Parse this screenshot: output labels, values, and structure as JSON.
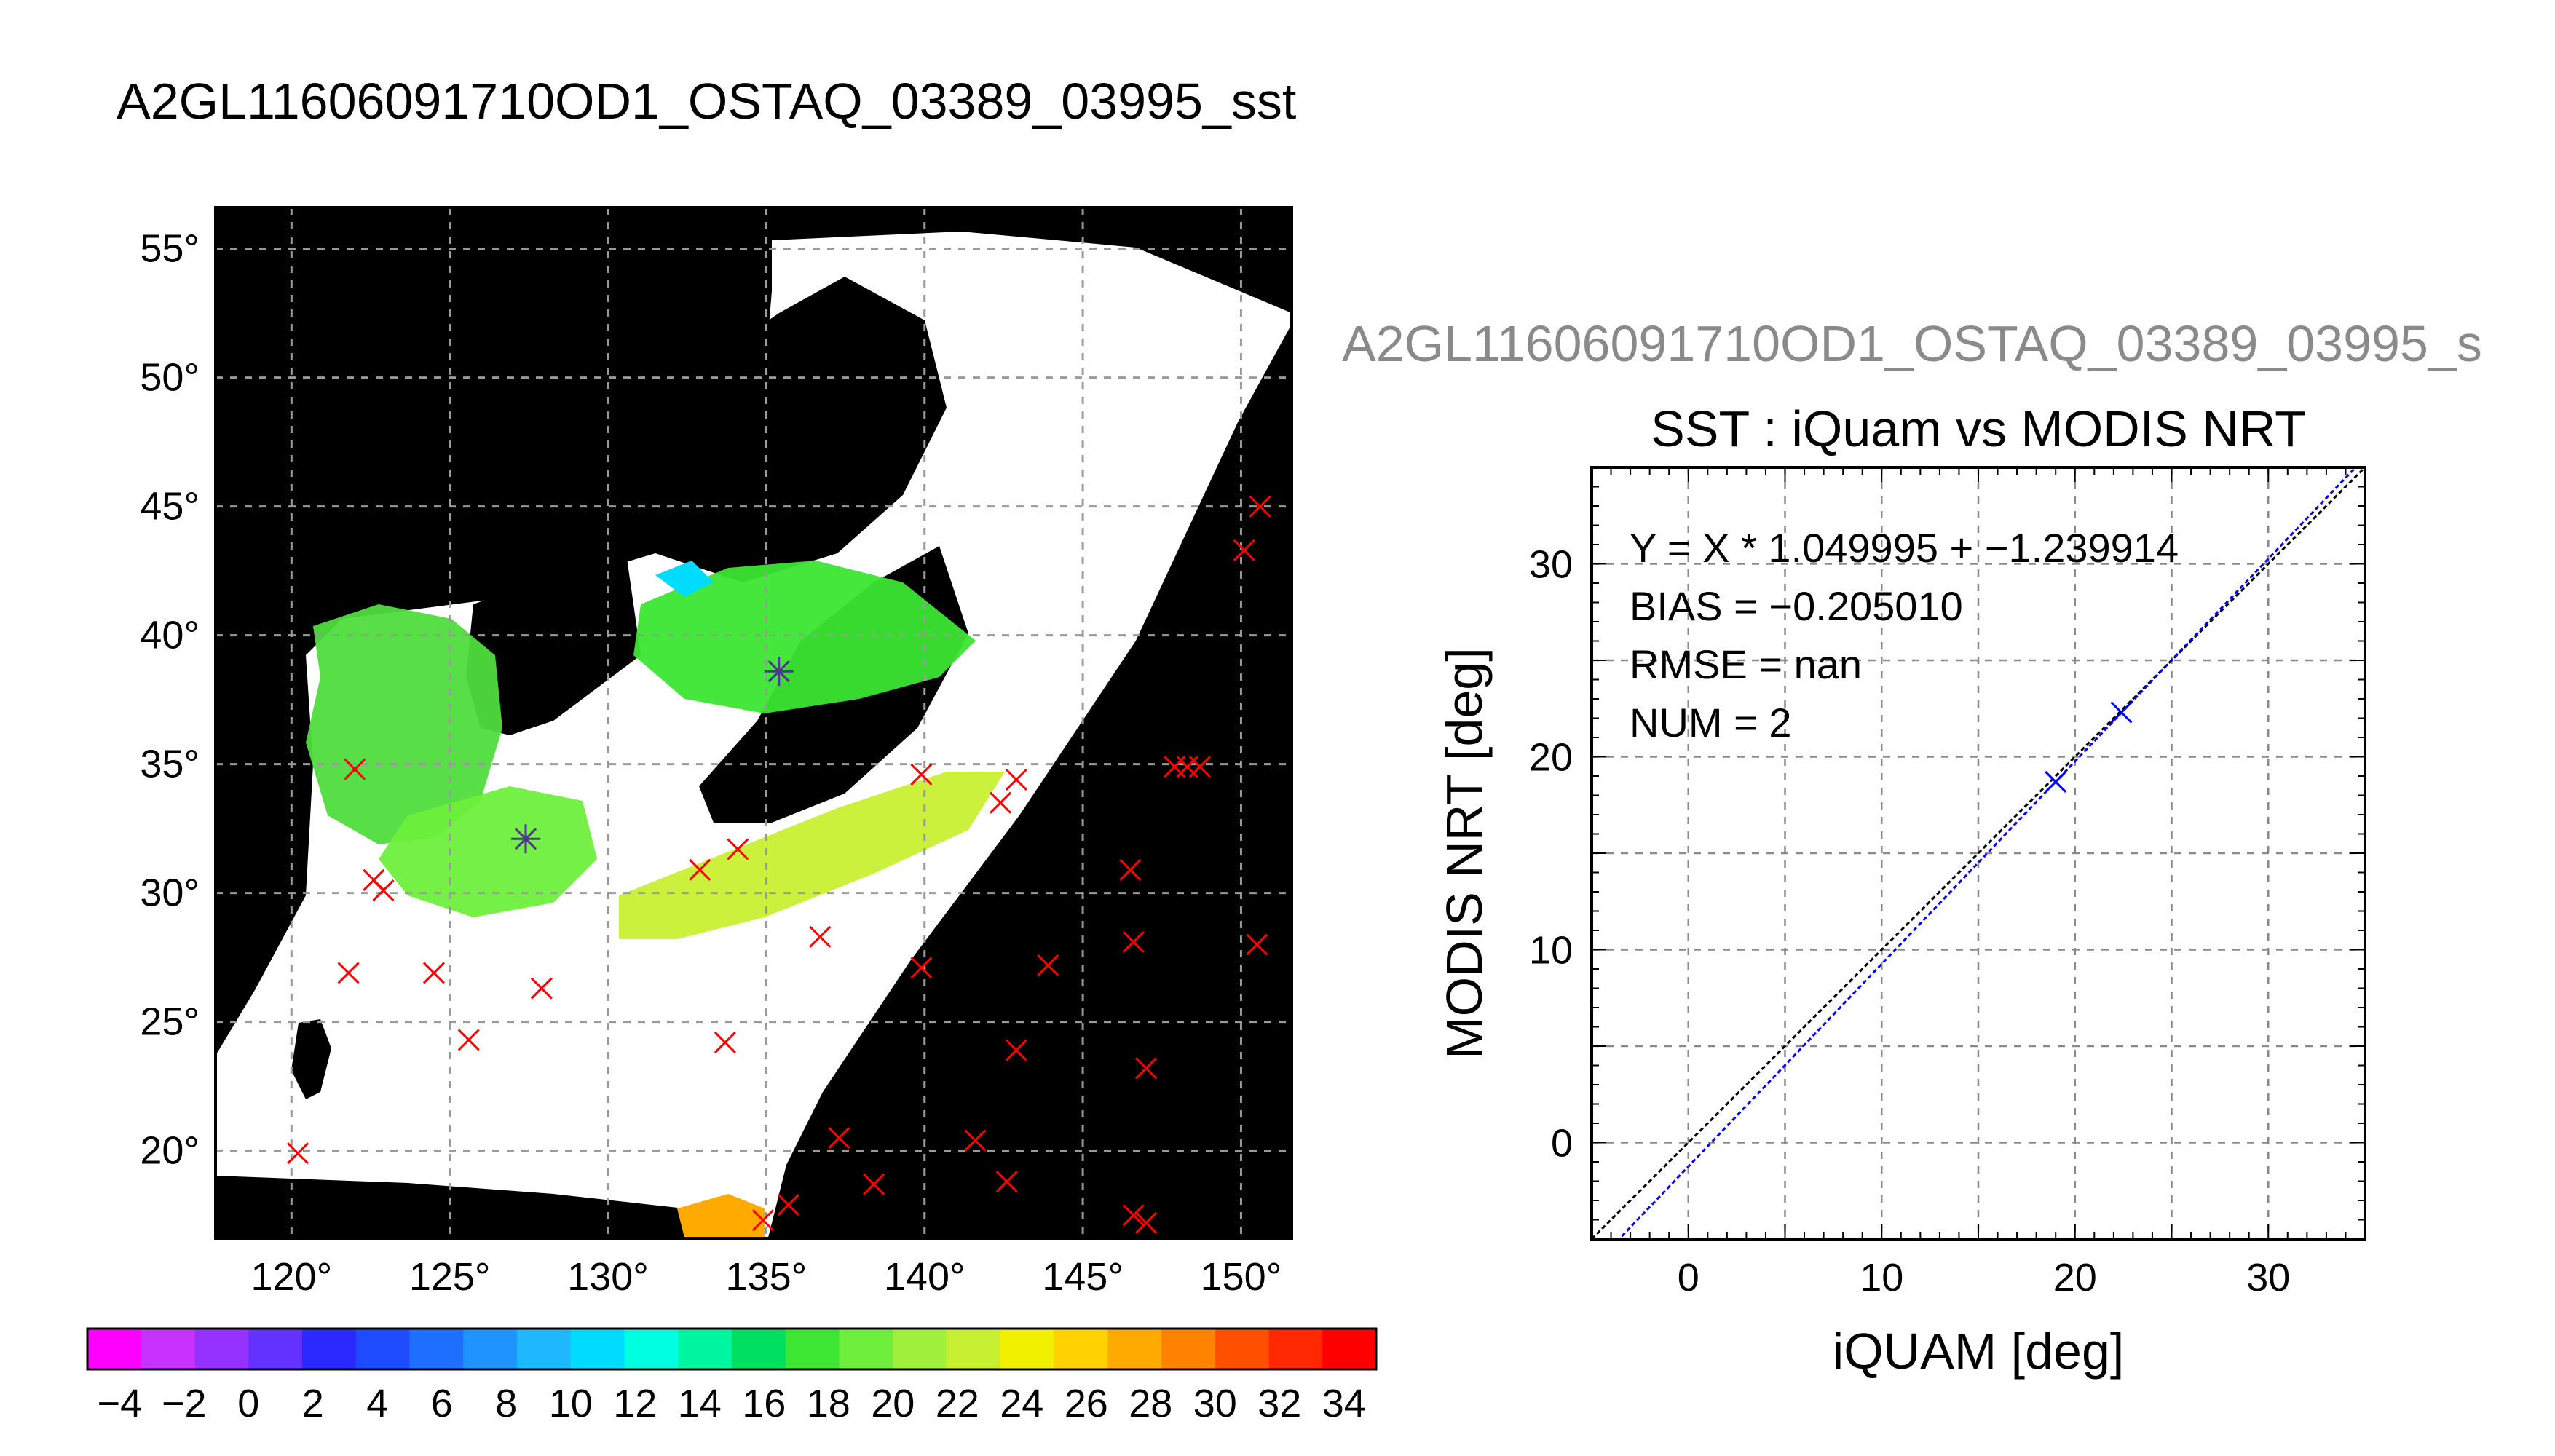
{
  "main_title": "A2GL11606091710OD1_OSTAQ_03389_03995_sst",
  "map": {
    "lon_ticks": [
      120,
      125,
      130,
      135,
      140,
      145,
      150
    ],
    "lat_ticks": [
      20,
      25,
      30,
      35,
      40,
      45,
      50,
      55
    ],
    "lon_range": [
      117.6,
      151.6
    ],
    "lat_range": [
      16.6,
      56.6
    ],
    "degree_symbol": "°",
    "colors": {
      "background": "#000000",
      "land_or_no_data": "#ffffff",
      "marker": "#ff0000",
      "highlight_marker": "#4b3b8f",
      "grid": "#9a9a9a"
    },
    "markers": [
      [
        120.2,
        19.9
      ],
      [
        121.8,
        26.9
      ],
      [
        122.0,
        34.8
      ],
      [
        122.6,
        30.5
      ],
      [
        122.9,
        30.1
      ],
      [
        124.5,
        26.9
      ],
      [
        125.6,
        24.3
      ],
      [
        127.4,
        32.1
      ],
      [
        127.9,
        26.3
      ],
      [
        132.9,
        30.9
      ],
      [
        133.7,
        24.2
      ],
      [
        134.1,
        31.7
      ],
      [
        135.4,
        38.6
      ],
      [
        134.9,
        17.3
      ],
      [
        135.7,
        17.9
      ],
      [
        136.7,
        28.3
      ],
      [
        137.3,
        20.5
      ],
      [
        138.4,
        18.7
      ],
      [
        139.9,
        34.6
      ],
      [
        139.9,
        27.1
      ],
      [
        141.6,
        20.4
      ],
      [
        142.4,
        33.5
      ],
      [
        142.6,
        18.8
      ],
      [
        142.9,
        34.4
      ],
      [
        142.9,
        23.9
      ],
      [
        143.9,
        27.2
      ],
      [
        146.5,
        30.9
      ],
      [
        146.6,
        28.1
      ],
      [
        146.6,
        17.5
      ],
      [
        147.0,
        17.2
      ],
      [
        147.0,
        23.2
      ],
      [
        147.9,
        34.9
      ],
      [
        148.3,
        34.9
      ],
      [
        148.7,
        34.9
      ],
      [
        150.1,
        43.3
      ],
      [
        150.5,
        28.0
      ],
      [
        150.6,
        45.0
      ]
    ],
    "highlight_markers": [
      [
        127.4,
        32.1
      ],
      [
        135.4,
        38.6
      ]
    ]
  },
  "colorbar": {
    "min": -5,
    "max": 35,
    "tick_labels": [
      "−4",
      "−2",
      "0",
      "2",
      "4",
      "6",
      "8",
      "10",
      "12",
      "14",
      "16",
      "18",
      "20",
      "22",
      "24",
      "26",
      "28",
      "30",
      "32",
      "34"
    ],
    "tick_values": [
      -4,
      -2,
      0,
      2,
      4,
      6,
      8,
      10,
      12,
      14,
      16,
      18,
      20,
      22,
      24,
      26,
      28,
      30,
      32,
      34
    ],
    "colors": [
      "#ff00ff",
      "#c832ff",
      "#9632ff",
      "#6432ff",
      "#2a2aff",
      "#1f4bff",
      "#1f6fff",
      "#1f93ff",
      "#1fb8ff",
      "#00dcff",
      "#00ffe0",
      "#00f5a0",
      "#00e060",
      "#3ce632",
      "#6eef3c",
      "#a0f03c",
      "#c8f032",
      "#f0f000",
      "#ffd200",
      "#ffaa00",
      "#ff8200",
      "#ff5000",
      "#ff2800",
      "#ff0000"
    ]
  },
  "scatter": {
    "watermark_title": "A2GL11606091710OD1_OSTAQ_03389_03995_s",
    "chart_data": {
      "type": "scatter",
      "title": "SST : iQuam vs MODIS NRT",
      "xlabel": "iQUAM [deg]",
      "ylabel": "MODIS NRT [deg]",
      "xlim": [
        -5,
        35
      ],
      "ylim": [
        -5,
        35
      ],
      "x_ticks": [
        0,
        10,
        20,
        30
      ],
      "y_ticks": [
        0,
        10,
        20,
        30
      ],
      "grid": true,
      "points": [
        [
          19.0,
          18.7
        ],
        [
          22.4,
          22.3
        ]
      ],
      "point_color": "#0000ff",
      "fit_line": {
        "slope": 1.049995,
        "intercept": -1.239914,
        "color": "#0000ff"
      },
      "identity_line": {
        "slope": 1.0,
        "intercept": 0.0,
        "color": "#000000"
      },
      "annotations": [
        "Y = X * 1.049995 + −1.239914",
        "BIAS = −0.205010",
        "RMSE = nan",
        "NUM = 2"
      ]
    }
  }
}
